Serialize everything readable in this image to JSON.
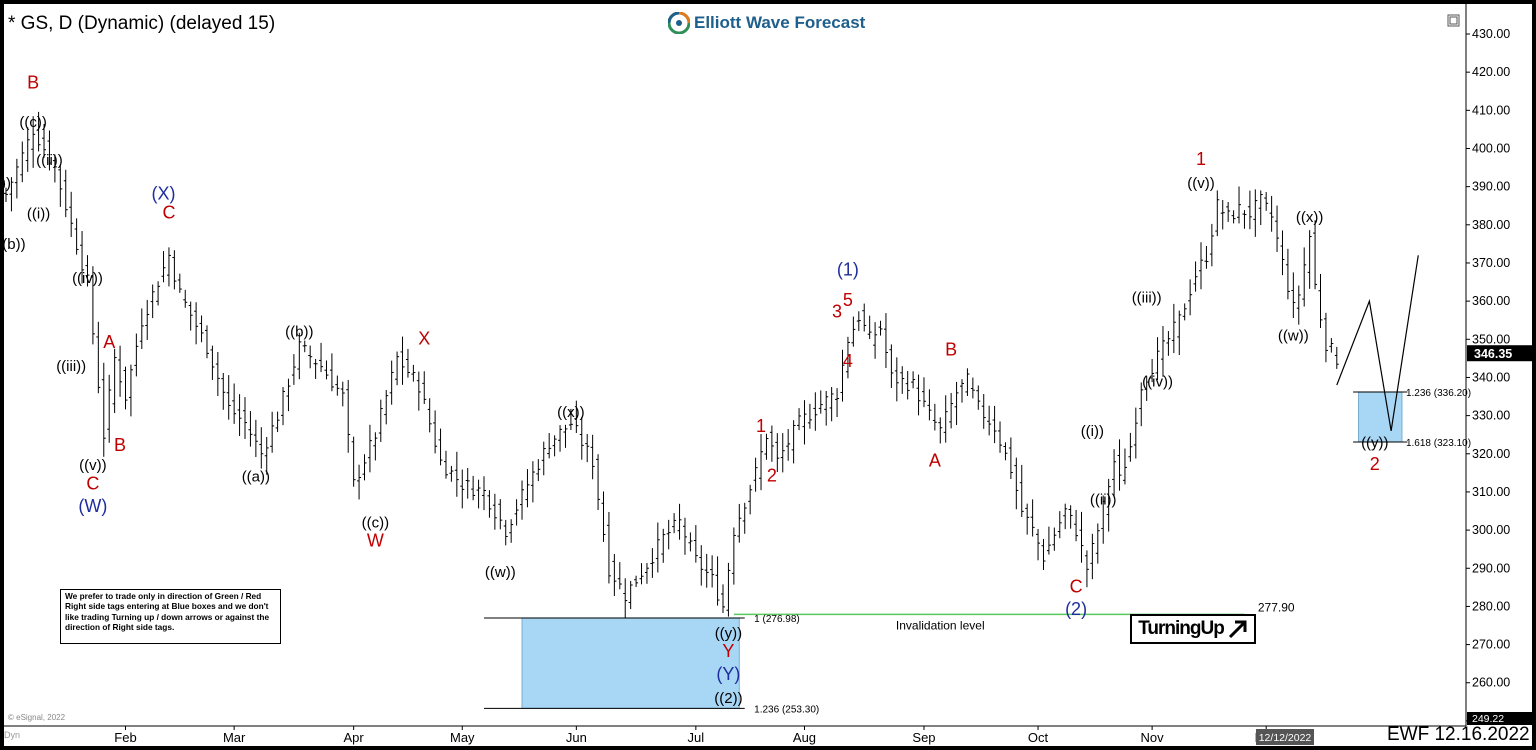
{
  "header": {
    "title": "* GS, D (Dynamic) (delayed 15)",
    "logo_text": "Elliott Wave Forecast"
  },
  "note_text": "We prefer to trade only in direction of Green / Red Right side tags entering at Blue boxes and we don't like trading Turning up / down arrows or against the direction of Right side tags.",
  "turning_label": "TurningUp",
  "footer": {
    "stamp": "EWF 12.16.2022",
    "copyright": "© eSignal, 2022",
    "dyn_label": "Dyn"
  },
  "chart_data": {
    "type": "ohlc",
    "ylim": [
      249.22,
      435
    ],
    "y_ticks": [
      250,
      260,
      270,
      280,
      290,
      300,
      310,
      320,
      330,
      340,
      350,
      360,
      370,
      380,
      390,
      400,
      410,
      420,
      430
    ],
    "y_tick_labels": [
      "250.00",
      "260.00",
      "270.00",
      "280.00",
      "290.00",
      "300.00",
      "310.00",
      "320.00",
      "330.00",
      "340.00",
      "350.00",
      "360.00",
      "370.00",
      "380.00",
      "390.00",
      "400.00",
      "410.00",
      "420.00",
      "430.00"
    ],
    "x_ticks": [
      {
        "label": "Feb",
        "day": 22
      },
      {
        "label": "Mar",
        "day": 42
      },
      {
        "label": "Apr",
        "day": 64
      },
      {
        "label": "May",
        "day": 84
      },
      {
        "label": "Jun",
        "day": 105
      },
      {
        "label": "Jul",
        "day": 127
      },
      {
        "label": "Aug",
        "day": 147
      },
      {
        "label": "Sep",
        "day": 169
      },
      {
        "label": "Oct",
        "day": 190
      },
      {
        "label": "Nov",
        "day": 211
      },
      {
        "label": "Dec",
        "day": 232
      }
    ],
    "n_days": 265,
    "last_price": "346.35",
    "bottom_price": "249.22",
    "date_box": "12/12/2022",
    "path": [
      [
        0,
        388
      ],
      [
        5,
        405
      ],
      [
        9,
        395
      ],
      [
        13,
        375
      ],
      [
        15,
        365
      ],
      [
        18,
        325
      ],
      [
        20,
        345
      ],
      [
        22,
        335
      ],
      [
        25,
        355
      ],
      [
        30,
        372
      ],
      [
        32,
        362
      ],
      [
        37,
        348
      ],
      [
        41,
        332
      ],
      [
        44,
        328
      ],
      [
        47,
        320
      ],
      [
        50,
        330
      ],
      [
        54,
        348
      ],
      [
        58,
        343
      ],
      [
        62,
        335
      ],
      [
        64,
        312
      ],
      [
        68,
        325
      ],
      [
        72,
        345
      ],
      [
        76,
        338
      ],
      [
        80,
        318
      ],
      [
        84,
        312
      ],
      [
        88,
        310
      ],
      [
        92,
        300
      ],
      [
        96,
        312
      ],
      [
        100,
        323
      ],
      [
        104,
        328
      ],
      [
        108,
        318
      ],
      [
        111,
        290
      ],
      [
        114,
        283
      ],
      [
        118,
        291
      ],
      [
        121,
        298
      ],
      [
        124,
        302
      ],
      [
        127,
        292
      ],
      [
        130,
        287
      ],
      [
        132,
        280
      ],
      [
        134,
        300
      ],
      [
        138,
        315
      ],
      [
        140,
        325
      ],
      [
        142,
        318
      ],
      [
        146,
        328
      ],
      [
        150,
        333
      ],
      [
        153,
        336
      ],
      [
        155,
        350
      ],
      [
        157,
        356
      ],
      [
        159,
        350
      ],
      [
        161,
        353
      ],
      [
        163,
        340
      ],
      [
        167,
        338
      ],
      [
        170,
        330
      ],
      [
        172,
        326
      ],
      [
        175,
        336
      ],
      [
        177,
        339
      ],
      [
        179,
        332
      ],
      [
        182,
        327
      ],
      [
        185,
        316
      ],
      [
        187,
        305
      ],
      [
        189,
        300
      ],
      [
        191,
        293
      ],
      [
        195,
        305
      ],
      [
        197,
        300
      ],
      [
        199,
        290
      ],
      [
        201,
        300
      ],
      [
        204,
        318
      ],
      [
        205,
        313
      ],
      [
        207,
        322
      ],
      [
        209,
        338
      ],
      [
        211,
        343
      ],
      [
        214,
        350
      ],
      [
        216,
        355
      ],
      [
        219,
        367
      ],
      [
        221,
        372
      ],
      [
        223,
        385
      ],
      [
        225,
        382
      ],
      [
        227,
        384
      ],
      [
        229,
        383
      ],
      [
        231,
        386
      ],
      [
        233,
        382
      ],
      [
        235,
        370
      ],
      [
        237,
        358
      ],
      [
        238,
        362
      ],
      [
        240,
        377
      ],
      [
        241,
        364
      ],
      [
        242,
        356
      ],
      [
        243,
        349
      ],
      [
        244,
        347
      ],
      [
        245,
        345
      ]
    ],
    "projection": [
      [
        245,
        338
      ],
      [
        251,
        360
      ],
      [
        255,
        326
      ],
      [
        260,
        372
      ]
    ],
    "blue_boxes": [
      {
        "x0": 95,
        "x1": 135,
        "y0": 253.3,
        "y1": 276.98
      },
      {
        "x0": 249,
        "x1": 257,
        "y0": 323.1,
        "y1": 336.2
      }
    ],
    "invalidation_level": 277.9,
    "invalidation_label": "Invalidation level",
    "invalidation_value_label": "277.90",
    "fib_levels": [
      {
        "label": "1 (276.98)",
        "day": 137,
        "y": 276.98
      },
      {
        "label": "1.236 (253.30)",
        "day": 137,
        "y": 253.3
      },
      {
        "label": "1.236 (336.20)",
        "day": 257,
        "y": 336.2
      },
      {
        "label": "1.618 (323.10)",
        "day": 257,
        "y": 323.1
      }
    ],
    "wave_labels": [
      {
        "text": "B",
        "day": 5,
        "y": 417,
        "color": "#c00000"
      },
      {
        "text": "((c))",
        "day": 5,
        "y": 407,
        "color": "#000"
      },
      {
        "text": "((ii))",
        "day": 8,
        "y": 397,
        "color": "#000"
      },
      {
        "text": "((i))",
        "day": 6,
        "y": 383,
        "color": "#000"
      },
      {
        "text": "((b))",
        "day": 1,
        "y": 375,
        "color": "#000"
      },
      {
        "text": "))",
        "day": 0,
        "y": 391,
        "color": "#000"
      },
      {
        "text": "((iv))",
        "day": 15,
        "y": 366,
        "color": "#000"
      },
      {
        "text": "A",
        "day": 19,
        "y": 349,
        "color": "#c00000"
      },
      {
        "text": "((iii))",
        "day": 12,
        "y": 343,
        "color": "#000"
      },
      {
        "text": "B",
        "day": 21,
        "y": 322,
        "color": "#c00000"
      },
      {
        "text": "((v))",
        "day": 16,
        "y": 317,
        "color": "#000"
      },
      {
        "text": "C",
        "day": 16,
        "y": 312,
        "color": "#c00000"
      },
      {
        "text": "(W)",
        "day": 16,
        "y": 306,
        "color": "#1f2d9e"
      },
      {
        "text": "(X)",
        "day": 29,
        "y": 388,
        "color": "#1f2d9e"
      },
      {
        "text": "C",
        "day": 30,
        "y": 383,
        "color": "#c00000"
      },
      {
        "text": "((b))",
        "day": 54,
        "y": 352,
        "color": "#000"
      },
      {
        "text": "((a))",
        "day": 46,
        "y": 314,
        "color": "#000"
      },
      {
        "text": "X",
        "day": 77,
        "y": 350,
        "color": "#c00000"
      },
      {
        "text": "((c))",
        "day": 68,
        "y": 302,
        "color": "#000"
      },
      {
        "text": "W",
        "day": 68,
        "y": 297,
        "color": "#c00000"
      },
      {
        "text": "((x))",
        "day": 104,
        "y": 331,
        "color": "#000"
      },
      {
        "text": "((w))",
        "day": 91,
        "y": 289,
        "color": "#000"
      },
      {
        "text": "((y))",
        "day": 133,
        "y": 273,
        "color": "#000"
      },
      {
        "text": "Y",
        "day": 133,
        "y": 268,
        "color": "#c00000"
      },
      {
        "text": "(Y)",
        "day": 133,
        "y": 262,
        "color": "#1f2d9e"
      },
      {
        "text": "((2))",
        "day": 133,
        "y": 256,
        "color": "#000"
      },
      {
        "text": "1",
        "day": 139,
        "y": 327,
        "color": "#c00000"
      },
      {
        "text": "2",
        "day": 141,
        "y": 314,
        "color": "#c00000"
      },
      {
        "text": "(1)",
        "day": 155,
        "y": 368,
        "color": "#1f2d9e"
      },
      {
        "text": "3",
        "day": 153,
        "y": 357,
        "color": "#c00000"
      },
      {
        "text": "5",
        "day": 155,
        "y": 360,
        "color": "#c00000"
      },
      {
        "text": "4",
        "day": 155,
        "y": 344,
        "color": "#c00000"
      },
      {
        "text": "B",
        "day": 174,
        "y": 347,
        "color": "#c00000"
      },
      {
        "text": "A",
        "day": 171,
        "y": 318,
        "color": "#c00000"
      },
      {
        "text": "C",
        "day": 197,
        "y": 285,
        "color": "#c00000"
      },
      {
        "text": "(2)",
        "day": 197,
        "y": 279,
        "color": "#1f2d9e"
      },
      {
        "text": "((i))",
        "day": 200,
        "y": 326,
        "color": "#000"
      },
      {
        "text": "((ii))",
        "day": 202,
        "y": 308,
        "color": "#000"
      },
      {
        "text": "((iii))",
        "day": 210,
        "y": 361,
        "color": "#000"
      },
      {
        "text": "((iv))",
        "day": 212,
        "y": 339,
        "color": "#000"
      },
      {
        "text": "1",
        "day": 220,
        "y": 397,
        "color": "#c00000"
      },
      {
        "text": "((v))",
        "day": 220,
        "y": 391,
        "color": "#000"
      },
      {
        "text": "((x))",
        "day": 240,
        "y": 382,
        "color": "#000"
      },
      {
        "text": "((w))",
        "day": 237,
        "y": 351,
        "color": "#000"
      },
      {
        "text": "((y))",
        "day": 252,
        "y": 323,
        "color": "#000"
      },
      {
        "text": "2",
        "day": 252,
        "y": 317,
        "color": "#c00000"
      }
    ],
    "colors": {
      "blue_box": "#a8d6f5",
      "blue_box_border": "#7aaed0",
      "invalidation_line": "#5cc95c",
      "bar": "#000000"
    }
  }
}
